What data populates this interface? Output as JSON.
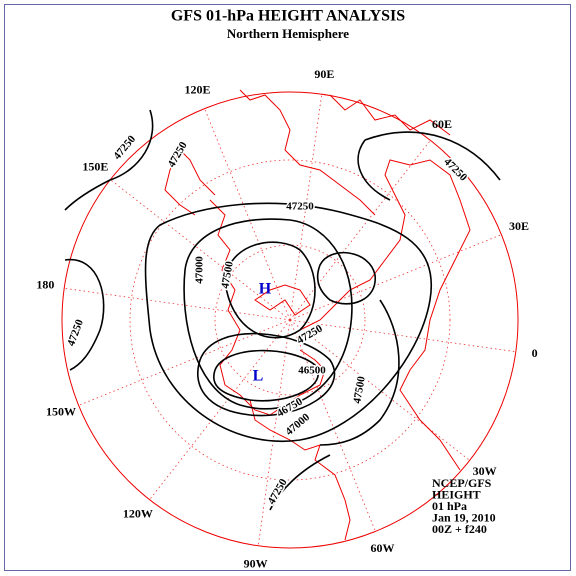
{
  "header": {
    "title": "GFS 01-hPa HEIGHT ANALYSIS",
    "subtitle": "Northern Hemisphere"
  },
  "longitude_labels": [
    "0",
    "30E",
    "60E",
    "90E",
    "120E",
    "150E",
    "180",
    "150W",
    "120W",
    "90W",
    "60W",
    "30W"
  ],
  "contour_labels": [
    47250,
    47250,
    47250,
    47000,
    47500,
    47250,
    47250,
    46500,
    46750,
    47000,
    47500,
    47250,
    47250
  ],
  "pressure_centers": [
    "H",
    "L"
  ],
  "info": [
    "NCEP/GFS",
    "HEIGHT",
    "01 hPa",
    "Jan 19, 2010",
    "00Z + f240"
  ]
}
